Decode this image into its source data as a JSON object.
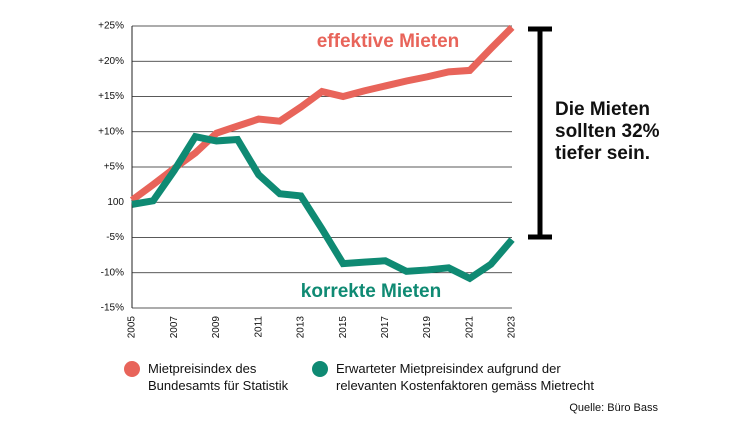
{
  "chart_data": {
    "type": "line",
    "x": [
      2005,
      2006,
      2007,
      2008,
      2009,
      2010,
      2011,
      2012,
      2013,
      2014,
      2015,
      2016,
      2017,
      2018,
      2019,
      2020,
      2021,
      2022,
      2023
    ],
    "series": [
      {
        "name": "Mietpreisindex des Bundesamts für Statistik",
        "color": "#e8645a",
        "values": [
          0.3,
          2.5,
          4.8,
          7,
          9.8,
          10.8,
          11.8,
          11.5,
          13.5,
          15.7,
          15,
          15.8,
          16.5,
          17.2,
          17.8,
          18.5,
          18.7,
          21.8,
          24.8
        ]
      },
      {
        "name": "Erwarteter Mietpreisindex aufgrund der relevanten Kostenfaktoren gemäss Mietrecht",
        "color": "#0f8a73",
        "values": [
          -0.3,
          0.2,
          4.5,
          9.3,
          8.7,
          8.9,
          3.9,
          1.2,
          0.9,
          -3.8,
          -8.7,
          -8.5,
          -8.3,
          -9.8,
          -9.6,
          -9.3,
          -10.8,
          -8.8,
          -5.3
        ]
      }
    ],
    "xlim": [
      2005,
      2023
    ],
    "xticks": [
      2005,
      2007,
      2009,
      2011,
      2013,
      2015,
      2017,
      2019,
      2021,
      2023
    ],
    "ylim": [
      -15,
      25
    ],
    "yticks": [
      {
        "value": -15,
        "label": "-15%"
      },
      {
        "value": -10,
        "label": "-10%"
      },
      {
        "value": -5,
        "label": "-5%"
      },
      {
        "value": 0,
        "label": "100"
      },
      {
        "value": 5,
        "label": "+5%"
      },
      {
        "value": 10,
        "label": "+10%"
      },
      {
        "value": 15,
        "label": "+15%"
      },
      {
        "value": 20,
        "label": "+20%"
      },
      {
        "value": 25,
        "label": "+25%"
      }
    ],
    "grid": true,
    "annotations": [
      "effektive Mieten",
      "korrekte Mieten"
    ],
    "callout": [
      "Die Mieten",
      "sollten 32%",
      "tiefer sein."
    ],
    "source": "Quelle: Büro Bass"
  }
}
